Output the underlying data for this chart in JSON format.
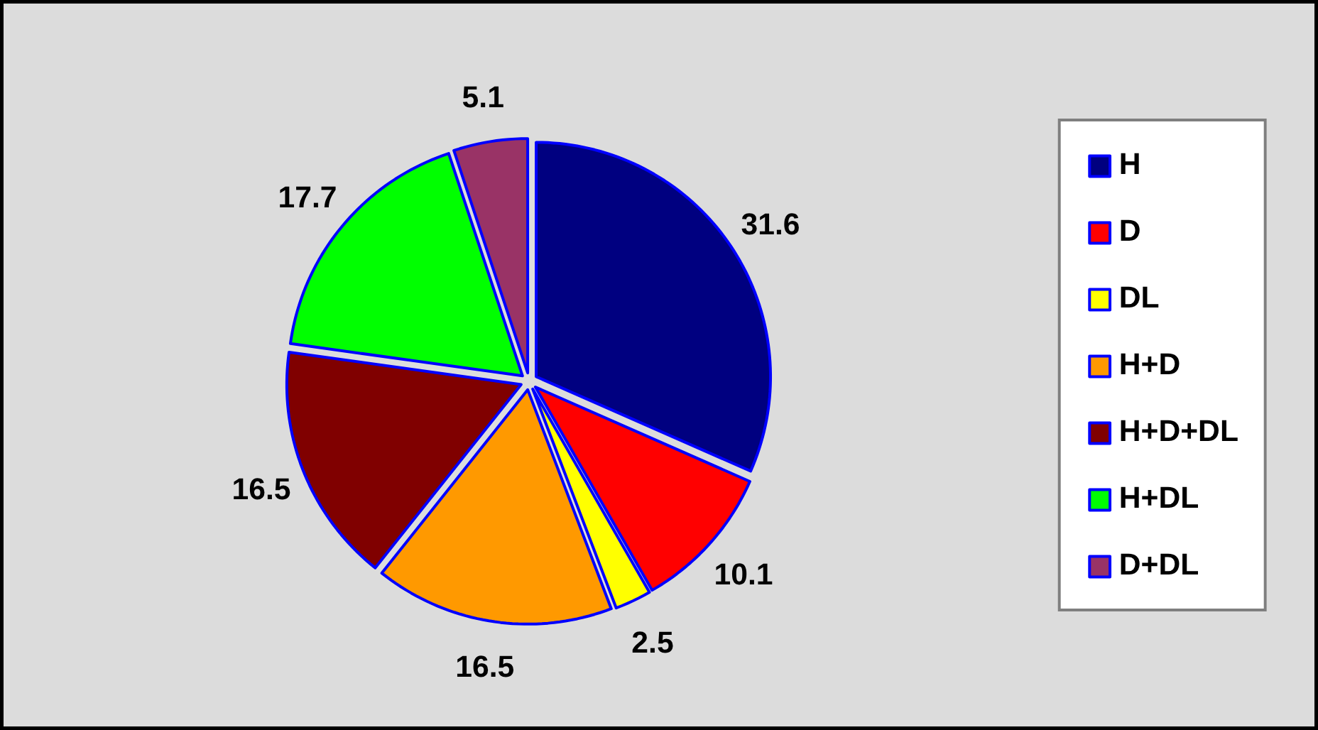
{
  "chart_data": {
    "type": "pie",
    "categories": [
      "H",
      "D",
      "DL",
      "H+D",
      "H+D+DL",
      "H+DL",
      "D+DL"
    ],
    "values": [
      31.6,
      10.1,
      2.5,
      16.5,
      16.5,
      17.7,
      5.1
    ],
    "colors": [
      "#000080",
      "#ff0000",
      "#ffff00",
      "#ff9900",
      "#800000",
      "#00ff00",
      "#993366"
    ],
    "data_labels": true,
    "legend": "right"
  }
}
